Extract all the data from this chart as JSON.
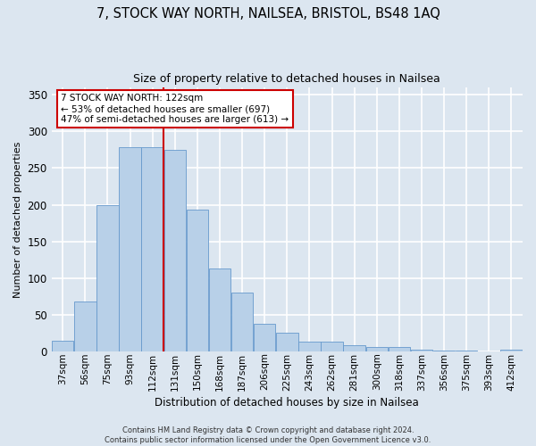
{
  "title1": "7, STOCK WAY NORTH, NAILSEA, BRISTOL, BS48 1AQ",
  "title2": "Size of property relative to detached houses in Nailsea",
  "xlabel": "Distribution of detached houses by size in Nailsea",
  "ylabel": "Number of detached properties",
  "bins": [
    "37sqm",
    "56sqm",
    "75sqm",
    "93sqm",
    "112sqm",
    "131sqm",
    "150sqm",
    "168sqm",
    "187sqm",
    "206sqm",
    "225sqm",
    "243sqm",
    "262sqm",
    "281sqm",
    "300sqm",
    "318sqm",
    "337sqm",
    "356sqm",
    "375sqm",
    "393sqm",
    "412sqm"
  ],
  "values": [
    15,
    68,
    200,
    278,
    278,
    275,
    193,
    113,
    80,
    38,
    25,
    13,
    13,
    8,
    6,
    6,
    3,
    1,
    1,
    0,
    2
  ],
  "bar_color": "#b8d0e8",
  "bar_edge_color": "#6699cc",
  "vline_x_index": 4.5,
  "vline_color": "#cc0000",
  "annotation_text": "7 STOCK WAY NORTH: 122sqm\n← 53% of detached houses are smaller (697)\n47% of semi-detached houses are larger (613) →",
  "annotation_box_color": "#ffffff",
  "annotation_box_edge": "#cc0000",
  "ylim": [
    0,
    360
  ],
  "yticks": [
    0,
    50,
    100,
    150,
    200,
    250,
    300,
    350
  ],
  "footer": "Contains HM Land Registry data © Crown copyright and database right 2024.\nContains public sector information licensed under the Open Government Licence v3.0.",
  "bg_color": "#dce6f0",
  "plot_bg_color": "#dce6f0",
  "grid_color": "#ffffff"
}
